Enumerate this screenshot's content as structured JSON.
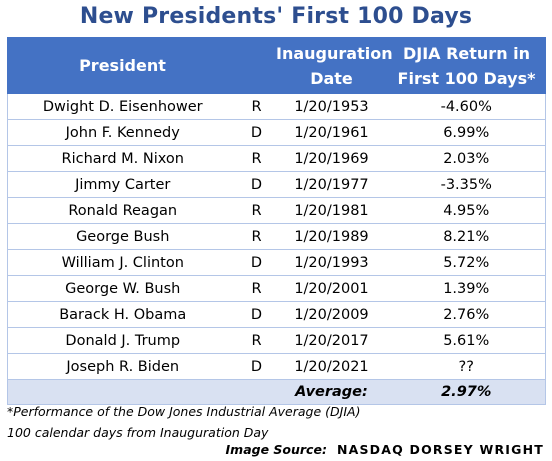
{
  "title": "New Presidents' First 100 Days",
  "columns": {
    "president": "President",
    "party": "",
    "date": "Inauguration Date",
    "return": "DJIA Return in First 100 Days*"
  },
  "rows": [
    {
      "president": "Dwight D. Eisenhower",
      "party": "R",
      "date": "1/20/1953",
      "return": "-4.60%"
    },
    {
      "president": "John F. Kennedy",
      "party": "D",
      "date": "1/20/1961",
      "return": "6.99%"
    },
    {
      "president": "Richard M. Nixon",
      "party": "R",
      "date": "1/20/1969",
      "return": "2.03%"
    },
    {
      "president": "Jimmy Carter",
      "party": "D",
      "date": "1/20/1977",
      "return": "-3.35%"
    },
    {
      "president": "Ronald Reagan",
      "party": "R",
      "date": "1/20/1981",
      "return": "4.95%"
    },
    {
      "president": "George Bush",
      "party": "R",
      "date": "1/20/1989",
      "return": "8.21%"
    },
    {
      "president": "William J. Clinton",
      "party": "D",
      "date": "1/20/1993",
      "return": "5.72%"
    },
    {
      "president": "George W. Bush",
      "party": "R",
      "date": "1/20/2001",
      "return": "1.39%"
    },
    {
      "president": "Barack H. Obama",
      "party": "D",
      "date": "1/20/2009",
      "return": "2.76%"
    },
    {
      "president": "Donald J. Trump",
      "party": "R",
      "date": "1/20/2017",
      "return": "5.61%"
    },
    {
      "president": "Joseph R. Biden",
      "party": "D",
      "date": "1/20/2021",
      "return": "??"
    }
  ],
  "average": {
    "label": "Average:",
    "value": "2.97%"
  },
  "footnote": {
    "line1": "*Performance of the Dow Jones Industrial Average (DJIA)",
    "line2": "100 calendar days from Inauguration Day"
  },
  "source": {
    "label": "Image Source:",
    "brand": "NASDAQ DORSEY WRIGHT"
  },
  "colors": {
    "title": "#2d4e8f",
    "header_bg": "#4472c4",
    "average_bg": "#d9e1f2",
    "row_border": "#b4c6e7"
  }
}
